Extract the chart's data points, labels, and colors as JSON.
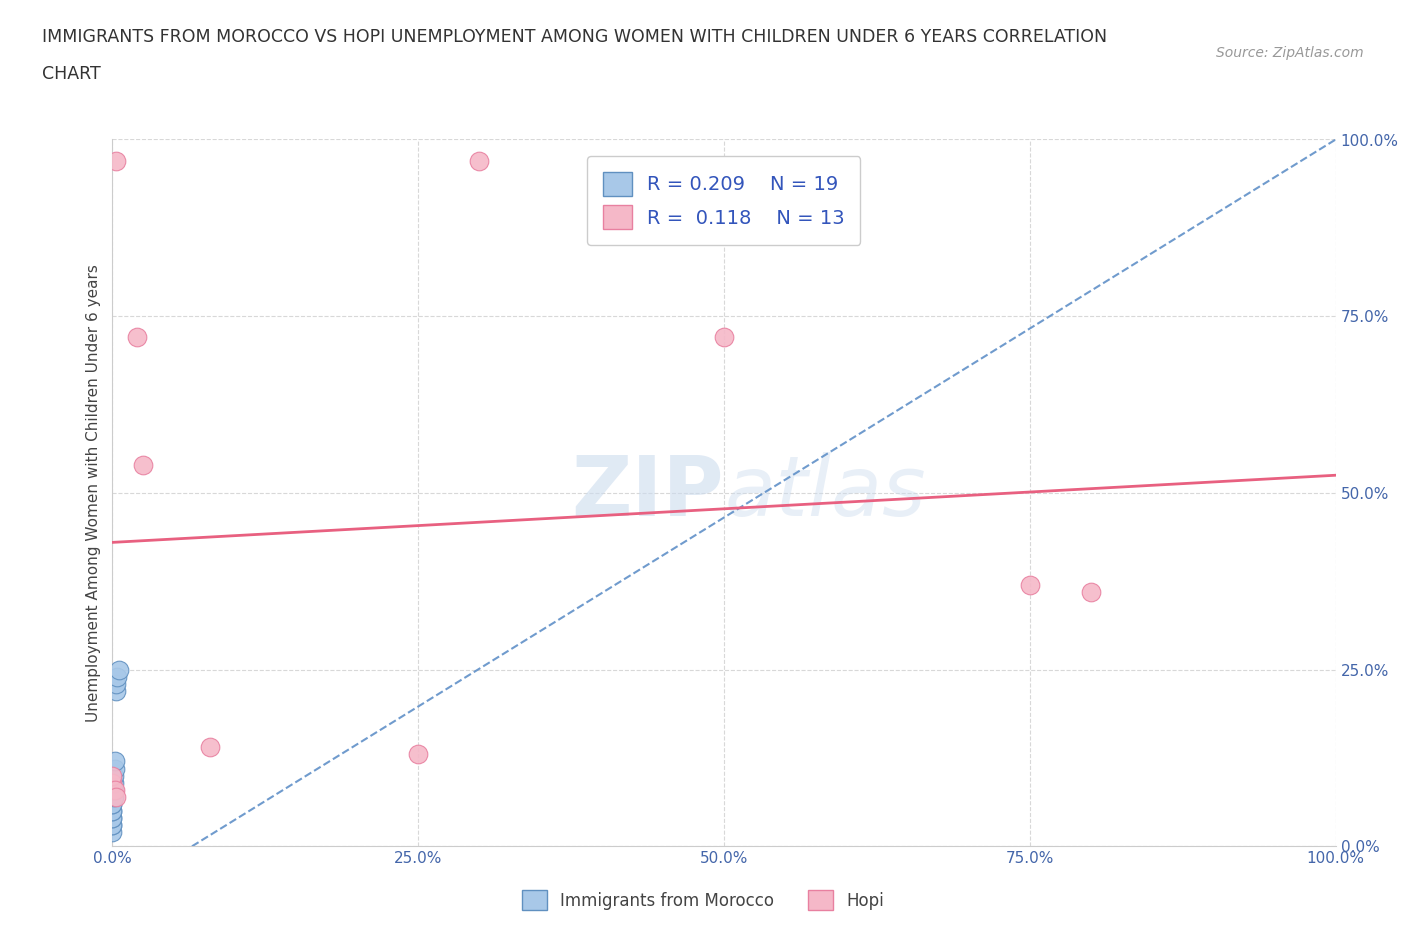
{
  "title_line1": "IMMIGRANTS FROM MOROCCO VS HOPI UNEMPLOYMENT AMONG WOMEN WITH CHILDREN UNDER 6 YEARS CORRELATION",
  "title_line2": "CHART",
  "source": "Source: ZipAtlas.com",
  "ylabel": "Unemployment Among Women with Children Under 6 years",
  "xlim": [
    0.0,
    1.0
  ],
  "ylim": [
    0.0,
    1.0
  ],
  "xticks": [
    0.0,
    0.25,
    0.5,
    0.75,
    1.0
  ],
  "yticks": [
    0.0,
    0.25,
    0.5,
    0.75,
    1.0
  ],
  "xtick_labels": [
    "0.0%",
    "25.0%",
    "50.0%",
    "75.0%",
    "100.0%"
  ],
  "ytick_labels": [
    "0.0%",
    "25.0%",
    "50.0%",
    "75.0%",
    "100.0%"
  ],
  "blue_scatter_x": [
    0.0,
    0.0,
    0.0,
    0.0,
    0.0,
    0.0,
    0.0,
    0.0,
    0.0,
    0.001,
    0.001,
    0.001,
    0.001,
    0.002,
    0.002,
    0.003,
    0.003,
    0.004,
    0.005
  ],
  "blue_scatter_y": [
    0.02,
    0.03,
    0.03,
    0.04,
    0.04,
    0.05,
    0.05,
    0.06,
    0.06,
    0.07,
    0.08,
    0.09,
    0.1,
    0.11,
    0.12,
    0.22,
    0.23,
    0.24,
    0.25
  ],
  "pink_scatter_x": [
    0.003,
    0.02,
    0.025,
    0.3,
    0.5,
    0.08,
    0.25,
    0.75,
    0.8,
    0.0,
    0.0,
    0.002,
    0.003
  ],
  "pink_scatter_y": [
    0.97,
    0.72,
    0.54,
    0.97,
    0.72,
    0.14,
    0.13,
    0.37,
    0.36,
    0.09,
    0.1,
    0.08,
    0.07
  ],
  "blue_line_x": [
    0.065,
    1.0
  ],
  "blue_line_y": [
    0.0,
    1.0
  ],
  "pink_line_x": [
    0.0,
    1.0
  ],
  "pink_line_y": [
    0.43,
    0.525
  ],
  "blue_color": "#a8c8e8",
  "pink_color": "#f5b8c8",
  "blue_edge": "#6090c0",
  "pink_edge": "#e880a0",
  "blue_line_color": "#6090c8",
  "pink_line_color": "#e86080",
  "legend_r_blue": "R = 0.209",
  "legend_n_blue": "N = 19",
  "legend_r_pink": "R =  0.118",
  "legend_n_pink": "N = 13",
  "watermark_zip": "ZIP",
  "watermark_atlas": "atlas",
  "background_color": "#ffffff",
  "grid_color": "#d8d8d8",
  "tick_color": "#4466aa"
}
